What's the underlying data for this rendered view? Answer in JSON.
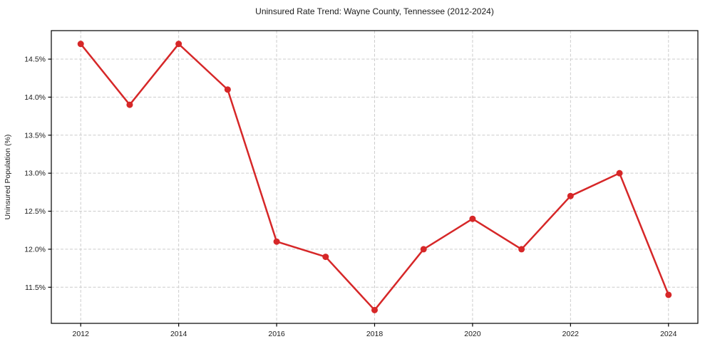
{
  "chart_data": {
    "type": "line",
    "title": "Uninsured Rate Trend: Wayne County, Tennessee (2012-2024)",
    "xlabel": "",
    "ylabel": "Uninsured Population (%)",
    "x": [
      2012,
      2013,
      2014,
      2015,
      2016,
      2017,
      2018,
      2019,
      2020,
      2021,
      2022,
      2023,
      2024
    ],
    "values": [
      14.7,
      13.9,
      14.7,
      14.1,
      12.1,
      11.9,
      11.2,
      12.0,
      12.4,
      12.0,
      12.7,
      13.0,
      11.4
    ],
    "xlim": [
      2011.4,
      2024.6
    ],
    "ylim": [
      11.025,
      14.875
    ],
    "x_ticks": [
      2012,
      2014,
      2016,
      2018,
      2020,
      2022,
      2024
    ],
    "y_ticks": [
      11.5,
      12.0,
      12.5,
      13.0,
      13.5,
      14.0,
      14.5
    ],
    "y_tick_suffix": "%",
    "y_tick_decimals": 1,
    "grid": true,
    "legend": false,
    "marker": "circle",
    "colors": {
      "line": "#d62728",
      "grid": "#cccccc",
      "spine": "#000000",
      "text": "#1a1a1a",
      "background": "#ffffff"
    }
  }
}
